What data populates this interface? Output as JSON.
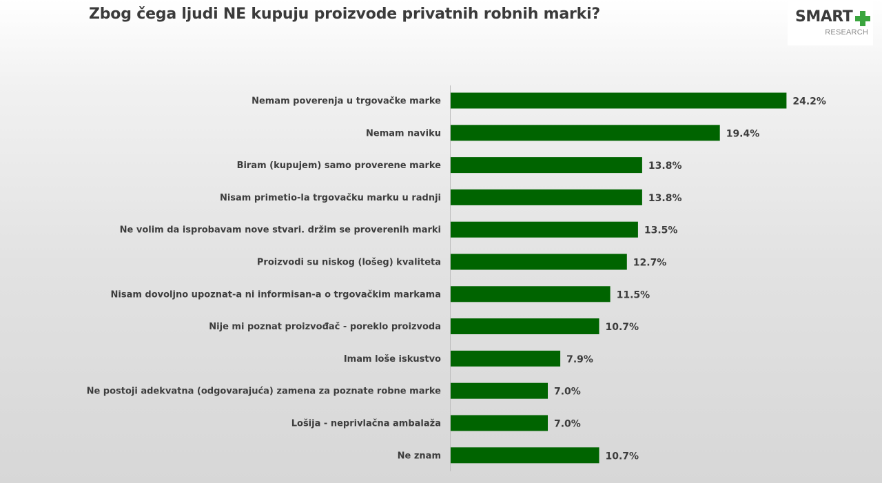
{
  "header": {
    "title": "Zbog čega ljudi NE kupuju proizvode privatnih robnih marki?"
  },
  "logo": {
    "word": "SMART",
    "sub": "RESEARCH",
    "accent_color": "#3aa53e"
  },
  "chart_data": {
    "type": "bar",
    "orientation": "horizontal",
    "title": "Zbog čega ljudi NE kupuju proizvode privatnih robnih marki?",
    "xlabel": "",
    "ylabel": "",
    "xlim": [
      0,
      25
    ],
    "grid": false,
    "legend": "none",
    "bar_color": "#006400",
    "value_suffix": "%",
    "categories": [
      "Nemam poverenja u trgovačke marke",
      "Nemam naviku",
      "Biram (kupujem) samo proverene marke",
      "Nisam primetio-la trgovačku marku u radnji",
      "Ne volim da isprobavam nove stvari. držim se proverenih marki",
      "Proizvodi su niskog (lošeg) kvaliteta",
      "Nisam dovoljno upoznat-a ni informisan-a o trgovačkim markama",
      "Nije mi poznat proizvođač - poreklo proizvoda",
      "Imam loše iskustvo",
      "Ne postoji adekvatna (odgovarajuća) zamena za poznate robne marke",
      "Lošija - neprivlačna ambalaža",
      "Ne znam"
    ],
    "values": [
      24.2,
      19.4,
      13.8,
      13.8,
      13.5,
      12.7,
      11.5,
      10.7,
      7.9,
      7.0,
      7.0,
      10.7
    ],
    "value_labels": [
      "24.2%",
      "19.4%",
      "13.8%",
      "13.8%",
      "13.5%",
      "12.7%",
      "11.5%",
      "10.7%",
      "7.9%",
      "7.0%",
      "7.0%",
      "10.7%"
    ]
  }
}
